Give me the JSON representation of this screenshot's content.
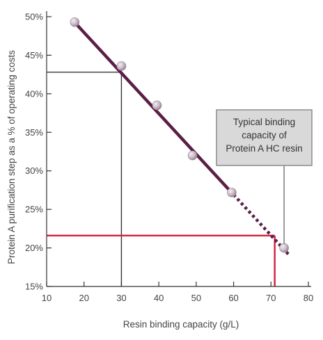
{
  "chart_data": {
    "type": "line",
    "xlabel": "Resin binding capacity (g/L)",
    "ylabel": "Protein A purification step as a % of operating costs",
    "xlim": [
      10,
      80
    ],
    "ylim": [
      15,
      50
    ],
    "x_ticks": [
      10,
      20,
      30,
      40,
      50,
      60,
      70,
      80
    ],
    "y_ticks": [
      15,
      20,
      25,
      30,
      35,
      40,
      45,
      50
    ],
    "x_tick_labels": [
      "10",
      "20",
      "30",
      "40",
      "50",
      "60",
      "70",
      "80"
    ],
    "y_tick_labels": [
      "15%",
      "20%",
      "25%",
      "30%",
      "35%",
      "40%",
      "45%",
      "50%"
    ],
    "grid": false,
    "points": [
      {
        "x": 17.5,
        "y": 49.3
      },
      {
        "x": 30,
        "y": 43.6
      },
      {
        "x": 39.5,
        "y": 38.5
      },
      {
        "x": 49,
        "y": 32
      },
      {
        "x": 59.5,
        "y": 27.2
      },
      {
        "x": 73.5,
        "y": 20
      }
    ],
    "trend_line": {
      "x_start": 18,
      "y_start": 49,
      "x_solid_end": 60,
      "y_solid_end": 26.9,
      "x_end": 75,
      "y_end": 19,
      "color": "#5b1f45"
    },
    "reference_lines": [
      {
        "x": 30,
        "y": 42.8,
        "color": "#333333"
      },
      {
        "x": 71,
        "y": 21.6,
        "color": "#d11f3c"
      }
    ],
    "annotation": {
      "lines": [
        "Typical binding",
        "capacity of",
        "Protein A HC resin"
      ],
      "points_to": {
        "x": 73.5,
        "y": 20
      }
    },
    "colors": {
      "trend": "#5b1f45",
      "marker": "#c2b4c0",
      "red_line": "#d11f3c",
      "ref_line": "#333333",
      "callout_fill": "#d9d9d9",
      "callout_border": "#8c8c8c"
    }
  }
}
